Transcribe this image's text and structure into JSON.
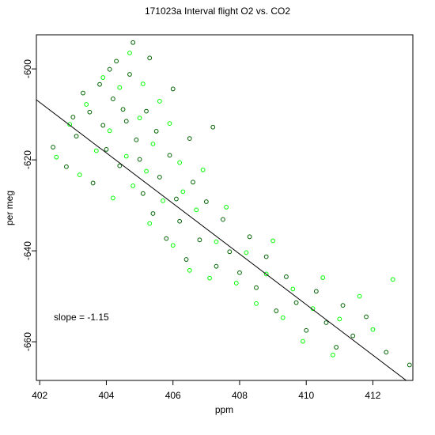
{
  "chart_data": {
    "type": "scatter",
    "title": "171023a   Interval flight O2 vs. CO2",
    "xlabel": "ppm",
    "ylabel": "per meg",
    "xlim": [
      401.9,
      413.2
    ],
    "ylim": [
      -668.5,
      -592.5
    ],
    "x_ticks": [
      402,
      404,
      406,
      408,
      410,
      412
    ],
    "y_ticks": [
      -600,
      -620,
      -640,
      -660
    ],
    "grid": false,
    "annotation": "slope =  -1.15",
    "regression_line": {
      "slope": -1.15,
      "points": [
        [
          401.9,
          -606.8
        ],
        [
          413.0,
          -668.5
        ]
      ]
    },
    "colors": {
      "dark_points": "#006400",
      "light_points": "#00ff00",
      "line": "#000000",
      "axis": "#000000"
    },
    "series": [
      {
        "color": "#006400",
        "points": [
          [
            402.4,
            -617.2
          ],
          [
            402.8,
            -621.5
          ],
          [
            403.0,
            -610.6
          ],
          [
            403.1,
            -614.8
          ],
          [
            403.3,
            -605.3
          ],
          [
            403.5,
            -609.5
          ],
          [
            403.6,
            -625.1
          ],
          [
            403.8,
            -603.4
          ],
          [
            403.9,
            -612.4
          ],
          [
            404.0,
            -617.7
          ],
          [
            404.1,
            -600.1
          ],
          [
            404.2,
            -606.6
          ],
          [
            404.3,
            -598.3
          ],
          [
            404.4,
            -621.3
          ],
          [
            404.5,
            -608.9
          ],
          [
            404.6,
            -611.5
          ],
          [
            404.7,
            -601.2
          ],
          [
            404.8,
            -594.2
          ],
          [
            404.9,
            -615.6
          ],
          [
            405.0,
            -619.9
          ],
          [
            405.1,
            -627.4
          ],
          [
            405.2,
            -609.3
          ],
          [
            405.3,
            -597.6
          ],
          [
            405.4,
            -631.8
          ],
          [
            405.5,
            -613.7
          ],
          [
            405.6,
            -623.8
          ],
          [
            405.8,
            -637.3
          ],
          [
            405.9,
            -619.0
          ],
          [
            406.0,
            -604.4
          ],
          [
            406.1,
            -628.6
          ],
          [
            406.2,
            -633.5
          ],
          [
            406.4,
            -641.9
          ],
          [
            406.5,
            -615.3
          ],
          [
            406.6,
            -624.9
          ],
          [
            406.8,
            -637.6
          ],
          [
            407.0,
            -629.2
          ],
          [
            407.2,
            -612.8
          ],
          [
            407.3,
            -643.4
          ],
          [
            407.5,
            -633.1
          ],
          [
            407.7,
            -640.2
          ],
          [
            408.0,
            -644.8
          ],
          [
            408.3,
            -636.9
          ],
          [
            408.5,
            -648.1
          ],
          [
            408.8,
            -641.3
          ],
          [
            409.1,
            -653.2
          ],
          [
            409.4,
            -645.7
          ],
          [
            409.7,
            -651.4
          ],
          [
            410.0,
            -657.5
          ],
          [
            410.3,
            -648.9
          ],
          [
            410.6,
            -655.8
          ],
          [
            410.9,
            -661.2
          ],
          [
            411.1,
            -652.0
          ],
          [
            411.4,
            -658.7
          ],
          [
            411.8,
            -654.5
          ],
          [
            412.4,
            -662.3
          ],
          [
            413.1,
            -665.1
          ]
        ]
      },
      {
        "color": "#00ff00",
        "points": [
          [
            402.5,
            -619.4
          ],
          [
            402.9,
            -612.2
          ],
          [
            403.2,
            -623.3
          ],
          [
            403.4,
            -607.8
          ],
          [
            403.7,
            -618.0
          ],
          [
            403.9,
            -601.9
          ],
          [
            404.1,
            -613.6
          ],
          [
            404.2,
            -628.4
          ],
          [
            404.4,
            -604.1
          ],
          [
            404.6,
            -619.2
          ],
          [
            404.7,
            -596.5
          ],
          [
            404.8,
            -625.7
          ],
          [
            405.0,
            -610.8
          ],
          [
            405.1,
            -603.3
          ],
          [
            405.2,
            -622.5
          ],
          [
            405.3,
            -634.0
          ],
          [
            405.4,
            -616.5
          ],
          [
            405.6,
            -607.1
          ],
          [
            405.7,
            -629.0
          ],
          [
            405.9,
            -612.0
          ],
          [
            406.0,
            -638.8
          ],
          [
            406.2,
            -620.6
          ],
          [
            406.3,
            -627.0
          ],
          [
            406.5,
            -644.3
          ],
          [
            406.7,
            -631.0
          ],
          [
            406.9,
            -622.2
          ],
          [
            407.1,
            -646.0
          ],
          [
            407.3,
            -638.0
          ],
          [
            407.6,
            -630.4
          ],
          [
            407.9,
            -647.1
          ],
          [
            408.2,
            -640.4
          ],
          [
            408.5,
            -651.6
          ],
          [
            408.8,
            -645.1
          ],
          [
            409.0,
            -637.8
          ],
          [
            409.3,
            -654.7
          ],
          [
            409.6,
            -648.4
          ],
          [
            409.9,
            -659.9
          ],
          [
            410.2,
            -652.7
          ],
          [
            410.5,
            -645.9
          ],
          [
            410.8,
            -662.9
          ],
          [
            411.0,
            -655.0
          ],
          [
            411.6,
            -650.0
          ],
          [
            412.0,
            -657.3
          ],
          [
            412.6,
            -646.3
          ]
        ]
      }
    ]
  }
}
